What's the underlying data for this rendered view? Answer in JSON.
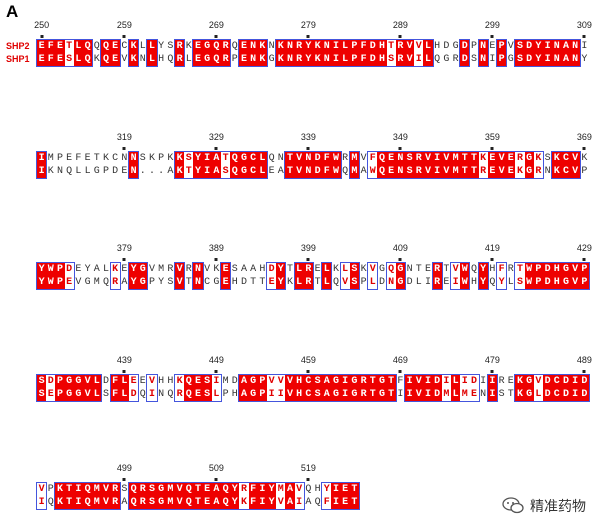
{
  "panel_label": "A",
  "sequence_names": [
    "SHP2",
    "SHP1"
  ],
  "blocks": [
    {
      "seq1": "EFETLQQQECKLLYSRKEGQRQENKNKNRYKNILPFDHTRVVLHDGDPNEPVSDYINANI",
      "seq2": "EFESLQKQEVKNLHQRLEGQRPENKGKNRYKNILPFDHSRVILQGRDSNIPGSDYINANY",
      "ticks": [
        {
          "label": "250",
          "i": 0
        },
        {
          "label": "259",
          "i": 9
        },
        {
          "label": "269",
          "i": 19
        },
        {
          "label": "279",
          "i": 29
        },
        {
          "label": "289",
          "i": 39
        },
        {
          "label": "299",
          "i": 49
        },
        {
          "label": "309",
          "i": 59
        }
      ],
      "names": true
    },
    {
      "seq1": "IMPEFETKCNNSKPKKSYIATQGCLQNTVNDFWRMVFQENSRVIVMTTKEVERGKSKCVK",
      "seq2": "IKNQLLGPDEN...AKTYIASQGCLEATVNDFWQMAWQENSRVIVMTTREVEKGRNKCVP",
      "ticks": [
        {
          "label": "319",
          "i": 9
        },
        {
          "label": "329",
          "i": 19
        },
        {
          "label": "339",
          "i": 29
        },
        {
          "label": "349",
          "i": 39
        },
        {
          "label": "359",
          "i": 49
        },
        {
          "label": "369",
          "i": 59
        }
      ],
      "names": false
    },
    {
      "seq1": "YWPDEYALKEYGVMRVRNVKESAAHDYTLRELKLSKVGQGNTERTVWQYHFRTWPDHGVP",
      "seq2": "YWPEVGMQRAYGPYSVTNCGEHDTTEYKLRTLQVSPLDNGDLIREIWHYQYLSWPDHGVP",
      "ticks": [
        {
          "label": "379",
          "i": 9
        },
        {
          "label": "389",
          "i": 19
        },
        {
          "label": "399",
          "i": 29
        },
        {
          "label": "409",
          "i": 39
        },
        {
          "label": "419",
          "i": 49
        },
        {
          "label": "429",
          "i": 59
        }
      ],
      "names": false
    },
    {
      "seq1": "SDPGGVLDFLEEVHHKQESIMDAGPVVVHCSAGIGRTGTFIVIDILIDIIREKGVDCDID",
      "seq2": "SEPGGVLSFLDQINQRQESLPHAGPIIVHCSAGIGRTGTIIVIDMLMENISTKGLDCDID",
      "ticks": [
        {
          "label": "439",
          "i": 9
        },
        {
          "label": "449",
          "i": 19
        },
        {
          "label": "459",
          "i": 29
        },
        {
          "label": "469",
          "i": 39
        },
        {
          "label": "479",
          "i": 49
        },
        {
          "label": "489",
          "i": 59
        }
      ],
      "names": false
    },
    {
      "seq1": "VPKTIQMVRSQRSGMVQTEAQYRFIYMAVQHYIET",
      "seq2": "IQKTIQMVRAQRSGMVQTEAQYKFIYVAIAQFIET",
      "ticks": [
        {
          "label": "499",
          "i": 9
        },
        {
          "label": "509",
          "i": 19
        },
        {
          "label": "519",
          "i": 29
        }
      ],
      "names": false
    }
  ],
  "watermark": {
    "text": "精准药物",
    "icon": "chat-bubble-icon"
  },
  "colors": {
    "identical_bg": "#ee0000",
    "similar_text": "#e00000",
    "box_border": "#4455dd"
  }
}
